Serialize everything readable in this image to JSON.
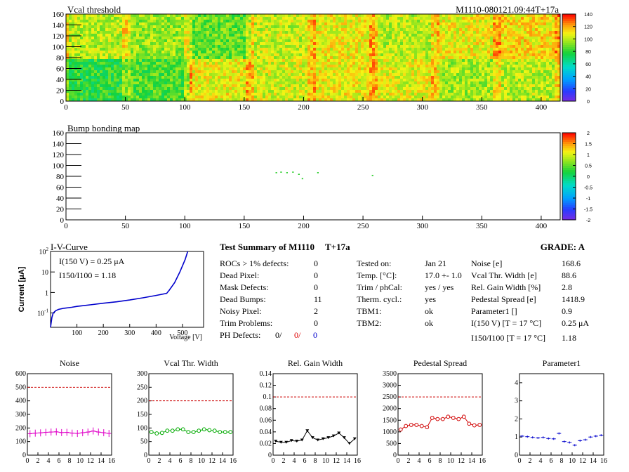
{
  "page": {
    "module_id": "M1110-080121.09:44T+17a"
  },
  "colors": {
    "palette_low": "#7a2be2",
    "palette_high": "#ff0000",
    "noise_series": "#e000c8",
    "vcal_series": "#00aa00",
    "rel_gain_series": "#000000",
    "pedestal_series": "#d00000",
    "param1_series": "#0000cc",
    "limit_line": "#cc0000",
    "iv_curve": "#0000cc",
    "ph_defect_red": "#dd0000",
    "ph_defect_blue": "#0000cc"
  },
  "summary": {
    "title": "Test Summary of M1110",
    "temp_tag": "T+17a",
    "grade": "GRADE:  A",
    "col1": [
      {
        "label": "ROCs > 1% defects:",
        "value": "0"
      },
      {
        "label": "Dead Pixel:",
        "value": "0"
      },
      {
        "label": "Mask Defects:",
        "value": "0"
      },
      {
        "label": "Dead Bumps:",
        "value": "11"
      },
      {
        "label": "Noisy Pixel:",
        "value": "2"
      },
      {
        "label": "Trim Problems:",
        "value": "0"
      }
    ],
    "ph_defects_label": "PH Defects:",
    "ph_defects_values": [
      "0/",
      "0/",
      "0"
    ],
    "col2": [
      {
        "label": "Tested on:",
        "value": "Jan 21"
      },
      {
        "label": "Temp. [°C]:",
        "value": "17.0 +- 1.0"
      },
      {
        "label": "Trim / phCal:",
        "value": "yes / yes"
      },
      {
        "label": "Therm. cycl.:",
        "value": "yes"
      },
      {
        "label": "TBM1:",
        "value": "ok"
      },
      {
        "label": "TBM2:",
        "value": "ok"
      }
    ],
    "col3": [
      {
        "label": "Noise [e]",
        "value": "168.6"
      },
      {
        "label": "Vcal Thr. Width [e]",
        "value": "88.6"
      },
      {
        "label": "Rel. Gain Width [%]",
        "value": "2.8"
      },
      {
        "label": "Pedestal Spread [e]",
        "value": "1418.9"
      },
      {
        "label": "Parameter1 []",
        "value": "0.9"
      },
      {
        "label": "I(150 V) [T = 17 °C]",
        "value": "0.25 μA"
      },
      {
        "label": "I150/I100  [T = 17 °C]",
        "value": "1.18"
      }
    ]
  },
  "chart_data": [
    {
      "type": "heatmap",
      "title": "Vcal threshold",
      "xlim": [
        0,
        416
      ],
      "ylim": [
        0,
        160
      ],
      "x_ticks": [
        0,
        50,
        100,
        150,
        200,
        250,
        300,
        350,
        400
      ],
      "y_ticks": [
        0,
        20,
        40,
        60,
        80,
        100,
        120,
        140,
        160
      ],
      "z_range": [
        0,
        140
      ],
      "z_ticks": [
        0,
        20,
        40,
        60,
        80,
        100,
        120,
        140
      ],
      "roc_mean_levels": {
        "top_row": [
          112,
          108,
          100,
          108,
          102,
          88,
          95,
          100
        ],
        "bottom_row": [
          80,
          85,
          108,
          104,
          108,
          106,
          97,
          100
        ]
      }
    },
    {
      "type": "heatmap",
      "title": "Bump bonding map",
      "xlim": [
        0,
        416
      ],
      "ylim": [
        0,
        160
      ],
      "x_ticks": [
        0,
        50,
        100,
        150,
        200,
        250,
        300,
        350,
        400
      ],
      "y_ticks": [
        0,
        20,
        40,
        60,
        80,
        100,
        120,
        140,
        160
      ],
      "z_range": [
        -2,
        2
      ],
      "z_ticks": [
        2,
        1.5,
        1,
        0.5,
        0,
        -0.5,
        -1,
        -1.5,
        -2
      ],
      "points": [
        {
          "x": 177,
          "y": 87
        },
        {
          "x": 181,
          "y": 88
        },
        {
          "x": 186,
          "y": 87
        },
        {
          "x": 191,
          "y": 88
        },
        {
          "x": 196,
          "y": 84
        },
        {
          "x": 199,
          "y": 76
        },
        {
          "x": 212,
          "y": 87
        },
        {
          "x": 258,
          "y": 82
        }
      ]
    },
    {
      "type": "line",
      "title": "I-V-Curve",
      "xlabel": "Voltage [V]",
      "ylabel": "Current [μA]",
      "y_scale": "log",
      "xlim": [
        0,
        580
      ],
      "ylim": [
        0.02,
        100
      ],
      "x_ticks": [
        100,
        200,
        300,
        400,
        500
      ],
      "annotation_1": "I(150 V) = 0.25 μA",
      "annotation_2": "I150/I100 =  1.18",
      "x": [
        0,
        5,
        10,
        20,
        30,
        50,
        80,
        100,
        150,
        200,
        250,
        300,
        350,
        400,
        440,
        450,
        470,
        490,
        510,
        520
      ],
      "y": [
        0.02,
        0.06,
        0.1,
        0.13,
        0.15,
        0.17,
        0.19,
        0.21,
        0.25,
        0.3,
        0.35,
        0.43,
        0.55,
        0.72,
        0.9,
        1.3,
        3,
        10,
        40,
        100
      ]
    },
    {
      "type": "line",
      "title": "Noise",
      "xlim": [
        0,
        16
      ],
      "ylim": [
        0,
        600
      ],
      "x_ticks": [
        0,
        2,
        4,
        6,
        8,
        10,
        12,
        14,
        16
      ],
      "y_ticks": [
        0,
        100,
        200,
        300,
        400,
        500,
        600
      ],
      "limit": 500,
      "values": [
        158,
        162,
        164,
        168,
        170,
        172,
        166,
        168,
        162,
        160,
        165,
        170,
        178,
        170,
        165,
        160
      ]
    },
    {
      "type": "line",
      "title": "Vcal Thr. Width",
      "xlim": [
        0,
        16
      ],
      "ylim": [
        0,
        300
      ],
      "x_ticks": [
        0,
        2,
        4,
        6,
        8,
        10,
        12,
        14,
        16
      ],
      "y_ticks": [
        0,
        50,
        100,
        150,
        200,
        250,
        300
      ],
      "limit": 200,
      "values": [
        85,
        80,
        82,
        90,
        90,
        95,
        95,
        85,
        85,
        90,
        95,
        92,
        90,
        85,
        85,
        85
      ]
    },
    {
      "type": "line",
      "title": "Rel. Gain Width",
      "xlim": [
        0,
        16
      ],
      "ylim": [
        0,
        0.14
      ],
      "x_ticks": [
        0,
        2,
        4,
        6,
        8,
        10,
        12,
        14,
        16
      ],
      "y_ticks": [
        0,
        0.02,
        0.04,
        0.06,
        0.08,
        0.1,
        0.12,
        0.14
      ],
      "limit": 0.1,
      "values": [
        0.024,
        0.022,
        0.022,
        0.025,
        0.024,
        0.026,
        0.042,
        0.03,
        0.026,
        0.028,
        0.03,
        0.033,
        0.038,
        0.03,
        0.02,
        0.028
      ]
    },
    {
      "type": "line",
      "title": "Pedestal Spread",
      "xlim": [
        0,
        16
      ],
      "ylim": [
        0,
        3500
      ],
      "x_ticks": [
        0,
        2,
        4,
        6,
        8,
        10,
        12,
        14,
        16
      ],
      "y_ticks": [
        0,
        500,
        1000,
        1500,
        2000,
        2500,
        3000,
        3500
      ],
      "limit": 2500,
      "values": [
        1100,
        1250,
        1300,
        1300,
        1250,
        1200,
        1600,
        1550,
        1550,
        1650,
        1600,
        1550,
        1650,
        1350,
        1280,
        1300
      ]
    },
    {
      "type": "scatter",
      "title": "Parameter1",
      "xlim": [
        0,
        16
      ],
      "ylim": [
        0,
        4.5
      ],
      "x_ticks": [
        0,
        2,
        4,
        6,
        8,
        10,
        12,
        14,
        16
      ],
      "y_ticks": [
        0,
        1,
        2,
        3,
        4
      ],
      "values": [
        1.05,
        1.02,
        0.98,
        0.95,
        0.98,
        0.92,
        0.9,
        1.2,
        0.75,
        0.7,
        0.55,
        0.8,
        0.85,
        1.0,
        1.05,
        1.1
      ]
    }
  ]
}
